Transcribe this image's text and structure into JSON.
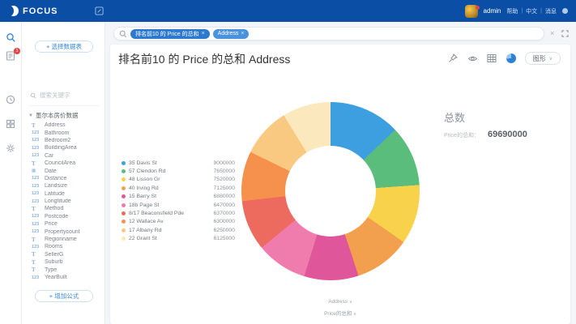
{
  "topbar": {
    "logo": "FOCUS",
    "user": "admin",
    "links": [
      "帮助",
      "中文",
      "消息"
    ],
    "badge_count": "1"
  },
  "sidebar": {
    "select_table_button": "+ 选择数据表",
    "search_placeholder": "搜索关键字",
    "table_name": "墨尔本房价数据",
    "fields": [
      {
        "name": "Address",
        "type": "text"
      },
      {
        "name": "Bathroom",
        "type": "number"
      },
      {
        "name": "Bedroom2",
        "type": "number"
      },
      {
        "name": "BuildingArea",
        "type": "number"
      },
      {
        "name": "Car",
        "type": "number"
      },
      {
        "name": "CouncilArea",
        "type": "text"
      },
      {
        "name": "Date",
        "type": "date"
      },
      {
        "name": "Distance",
        "type": "number"
      },
      {
        "name": "Landsize",
        "type": "number"
      },
      {
        "name": "Latitude",
        "type": "number"
      },
      {
        "name": "Longtitude",
        "type": "number"
      },
      {
        "name": "Method",
        "type": "text"
      },
      {
        "name": "Postcode",
        "type": "number"
      },
      {
        "name": "Price",
        "type": "number"
      },
      {
        "name": "Propertycount",
        "type": "number"
      },
      {
        "name": "Regionname",
        "type": "text"
      },
      {
        "name": "Rooms",
        "type": "number"
      },
      {
        "name": "SellerG",
        "type": "text"
      },
      {
        "name": "Suburb",
        "type": "text"
      },
      {
        "name": "Type",
        "type": "text"
      },
      {
        "name": "YearBuilt",
        "type": "number"
      }
    ],
    "add_formula_button": "+ 增加公式"
  },
  "searchbar": {
    "tokens": [
      "排名前10 的 Price 的总和",
      "Address"
    ],
    "clear_label": "×"
  },
  "main": {
    "title": "排名前10 的 Price 的总和 Address",
    "chart_dropdown": "图形",
    "total_label": "总数",
    "total_field": "Price的总和：",
    "total_value": "69690000",
    "axis_selectors": [
      "Address",
      "Price的总和"
    ]
  },
  "chart_data": {
    "type": "pie",
    "title": "排名前10 的 Price 的总和 Address",
    "donut": true,
    "inner_radius_ratio": 0.51,
    "legend_position": "left",
    "total": 69690000,
    "categories": [
      "35 Davis St",
      "57 Clendon Rd",
      "48 Lisson Gr",
      "40 Irving Rd",
      "15 Barry St",
      "18b Page St",
      "8/17 Beaconsfield Pde",
      "12 Wallace Av",
      "17 Albany Rd",
      "22 Grant St"
    ],
    "values": [
      9000000,
      7650000,
      7520000,
      7125000,
      6880000,
      6470000,
      6370000,
      6300000,
      6250000,
      6125000
    ],
    "colors": [
      "#3d9fe0",
      "#5abd7c",
      "#f8d24b",
      "#f2a04e",
      "#e0569a",
      "#f07cad",
      "#ec6a5e",
      "#f5914d",
      "#f9c981",
      "#fbe9bd"
    ]
  }
}
